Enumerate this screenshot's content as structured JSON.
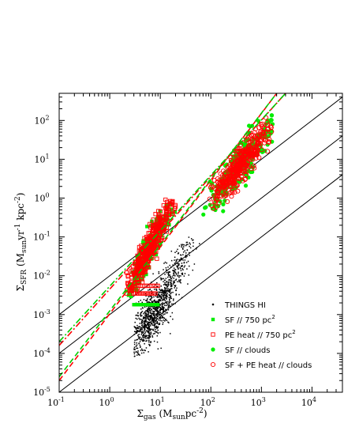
{
  "chart_data": {
    "type": "scatter",
    "x_scale": "log",
    "y_scale": "log",
    "xlim": [
      0.1,
      40000
    ],
    "ylim": [
      1e-05,
      500
    ],
    "x_ticks": [
      {
        "value": 0.1,
        "base": "10",
        "exp": "-1"
      },
      {
        "value": 1,
        "base": "10",
        "exp": "0"
      },
      {
        "value": 10,
        "base": "10",
        "exp": "1"
      },
      {
        "value": 100,
        "base": "10",
        "exp": "2"
      },
      {
        "value": 1000,
        "base": "10",
        "exp": "3"
      },
      {
        "value": 10000,
        "base": "10",
        "exp": "4"
      }
    ],
    "y_ticks": [
      {
        "value": 1e-05,
        "base": "10",
        "exp": "-5"
      },
      {
        "value": 0.0001,
        "base": "10",
        "exp": "-4"
      },
      {
        "value": 0.001,
        "base": "10",
        "exp": "-3"
      },
      {
        "value": 0.01,
        "base": "10",
        "exp": "-2"
      },
      {
        "value": 0.1,
        "base": "10",
        "exp": "-1"
      },
      {
        "value": 1,
        "base": "10",
        "exp": "0"
      },
      {
        "value": 10,
        "base": "10",
        "exp": "1"
      },
      {
        "value": 100,
        "base": "10",
        "exp": "2"
      }
    ],
    "xlabel": {
      "main": "Σ",
      "sub": "gas",
      "rest": " (M",
      "sub2": "sun",
      "rest2": "pc",
      "sup2": "-2",
      "end": ")"
    },
    "ylabel": {
      "main": "Σ",
      "sub": "SFR",
      "rest": " (M",
      "sub2": "sun",
      "rest2": "yr",
      "sup2": "-1",
      "rest3": " kpc",
      "sup3": "-2",
      "end": ")"
    },
    "legend_position": "bottom-right",
    "legend": [
      {
        "label": "THINGS HI",
        "sup": "",
        "marker": "dot",
        "color": "#000000"
      },
      {
        "label": "SF // 750 pc",
        "sup": "2",
        "marker": "filled-square",
        "color": "#00ee00"
      },
      {
        "label": "PE heat // 750 pc",
        "sup": "2",
        "marker": "open-square",
        "color": "#ff0000"
      },
      {
        "label": "SF // clouds",
        "sup": "",
        "marker": "filled-circle",
        "color": "#00ee00"
      },
      {
        "label": "SF + PE heat // clouds",
        "sup": "",
        "marker": "open-circle",
        "color": "#ff0000"
      }
    ],
    "reference_lines": [
      {
        "intercept_at_x1": 0.01,
        "slope": 1,
        "color": "#000000"
      },
      {
        "intercept_at_x1": 0.001,
        "slope": 1,
        "color": "#000000"
      },
      {
        "intercept_at_x1": 0.0001,
        "slope": 1,
        "color": "#000000"
      }
    ],
    "fit_lines": [
      {
        "series": "PE heat // 750 pc2",
        "x": [
          0.1,
          2000
        ],
        "y": [
          2e-05,
          500
        ],
        "color": "#ff0000",
        "dash": "dashed"
      },
      {
        "series": "SF // 750 pc2",
        "x": [
          0.1,
          2000
        ],
        "y": [
          2.5e-05,
          500
        ],
        "color": "#00cc00",
        "dash": "dashed"
      },
      {
        "series": "SF + PE heat // clouds",
        "x": [
          0.1,
          3000
        ],
        "y": [
          0.00016,
          500
        ],
        "color": "#ff0000",
        "dash": "dashdot"
      },
      {
        "series": "SF // clouds",
        "x": [
          0.1,
          3000
        ],
        "y": [
          0.0002,
          500
        ],
        "color": "#00cc00",
        "dash": "dashdot"
      }
    ],
    "clusters": [
      {
        "series": "THINGS HI",
        "n": 900,
        "x_range": [
          3,
          30
        ],
        "y_range": [
          8e-05,
          0.015
        ],
        "slope": 1.8,
        "x_center": 7,
        "y_center": 0.001,
        "scatter": 0.35
      },
      {
        "series": "THINGS HI",
        "n": 160,
        "x_range": [
          10,
          60
        ],
        "y_range": [
          0.003,
          0.12
        ],
        "slope": 1.5,
        "x_center": 25,
        "y_center": 0.02,
        "scatter": 0.25
      },
      {
        "series": "SF // 750 pc2",
        "n": 260,
        "x_range": [
          2,
          20
        ],
        "y_range": [
          0.0015,
          1.0
        ],
        "slope": 2.4,
        "x_center": 6,
        "y_center": 0.05,
        "scatter": 0.2
      },
      {
        "series": "PE heat // 750 pc2",
        "n": 420,
        "x_range": [
          2,
          20
        ],
        "y_range": [
          0.003,
          1.0
        ],
        "slope": 2.4,
        "x_center": 6,
        "y_center": 0.05,
        "scatter": 0.2
      },
      {
        "series": "SF // clouds",
        "n": 260,
        "x_range": [
          60,
          1800
        ],
        "y_range": [
          0.3,
          150
        ],
        "slope": 1.6,
        "x_center": 400,
        "y_center": 8,
        "scatter": 0.25
      },
      {
        "series": "SF + PE heat // clouds",
        "n": 420,
        "x_range": [
          80,
          1800
        ],
        "y_range": [
          0.5,
          120
        ],
        "slope": 1.6,
        "x_center": 400,
        "y_center": 8,
        "scatter": 0.22
      }
    ],
    "strips": [
      {
        "series": "SF // 750 pc2",
        "y": 0.0018,
        "x_range": [
          3,
          9
        ]
      },
      {
        "series": "PE heat // 750 pc2",
        "y": 0.0035,
        "x_range": [
          3,
          8
        ]
      },
      {
        "series": "PE heat // 750 pc2",
        "y": 0.0055,
        "x_range": [
          3,
          9
        ]
      }
    ]
  }
}
